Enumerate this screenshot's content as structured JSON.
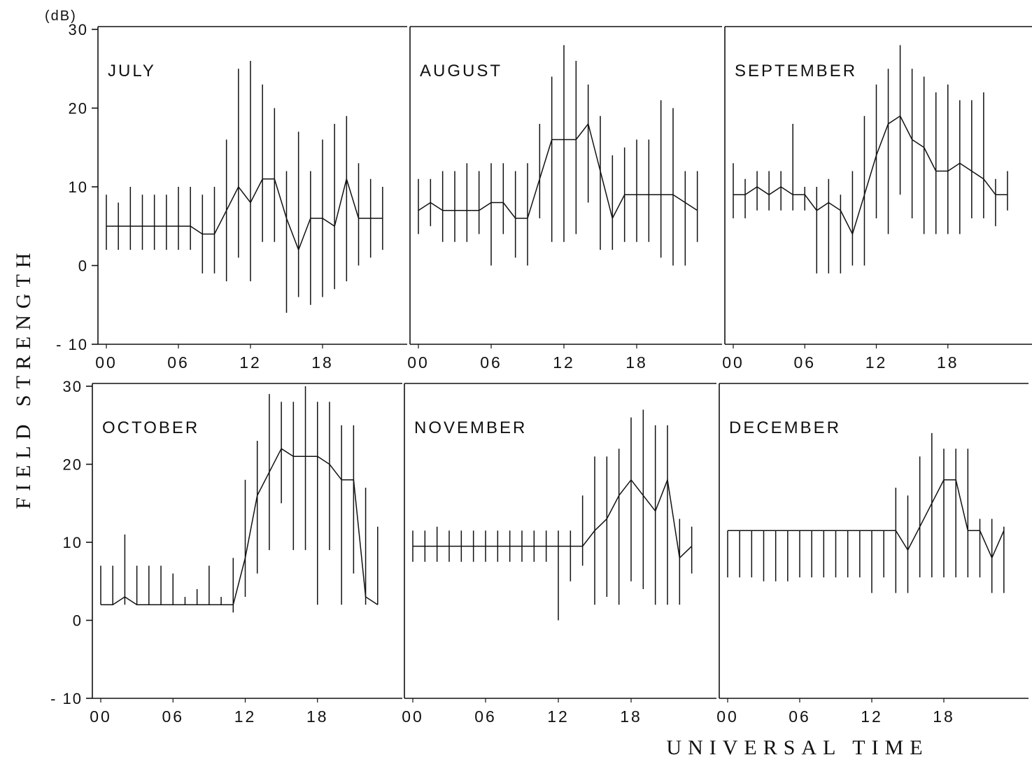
{
  "figure": {
    "ylabel": "FIELD STRENGTH",
    "xlabel": "UNIVERSAL TIME",
    "yunit": "(dB)"
  },
  "chart_data": [
    {
      "type": "line",
      "title": "JULY",
      "xlabel": "UNIVERSAL TIME",
      "ylabel": "FIELD STRENGTH",
      "yunit": "(dB)",
      "xlim": [
        0,
        24
      ],
      "ylim": [
        -10,
        30
      ],
      "xticks": [
        "00",
        "06",
        "12",
        "18"
      ],
      "yticks": [
        "30",
        "20",
        "10",
        "0",
        "-10"
      ],
      "x": [
        0,
        1,
        2,
        3,
        4,
        5,
        6,
        7,
        8,
        9,
        10,
        11,
        12,
        13,
        14,
        15,
        16,
        17,
        18,
        19,
        20,
        21,
        22,
        23
      ],
      "median": [
        5,
        5,
        5,
        5,
        5,
        5,
        5,
        5,
        4,
        4,
        7,
        10,
        8,
        11,
        11,
        6,
        2,
        6,
        6,
        5,
        11,
        6,
        6,
        6
      ],
      "upper": [
        9,
        8,
        10,
        9,
        9,
        9,
        10,
        10,
        9,
        10,
        16,
        25,
        26,
        23,
        20,
        12,
        17,
        12,
        16,
        18,
        19,
        13,
        11,
        10
      ],
      "lower": [
        2,
        2,
        2,
        2,
        2,
        2,
        2,
        2,
        -1,
        -1,
        -2,
        1,
        -2,
        3,
        3,
        -6,
        -4,
        -5,
        -4,
        -3,
        -2,
        0,
        1,
        2
      ]
    },
    {
      "type": "line",
      "title": "AUGUST",
      "xlabel": "UNIVERSAL TIME",
      "ylabel": "FIELD STRENGTH",
      "yunit": "(dB)",
      "xlim": [
        0,
        24
      ],
      "ylim": [
        -10,
        30
      ],
      "xticks": [
        "00",
        "06",
        "12",
        "18"
      ],
      "yticks": [
        "30",
        "20",
        "10",
        "0",
        "-10"
      ],
      "x": [
        0,
        1,
        2,
        3,
        4,
        5,
        6,
        7,
        8,
        9,
        10,
        11,
        12,
        13,
        14,
        15,
        16,
        17,
        18,
        19,
        20,
        21,
        22,
        23
      ],
      "median": [
        7,
        8,
        7,
        7,
        7,
        7,
        8,
        8,
        6,
        6,
        11,
        16,
        16,
        16,
        18,
        12,
        6,
        9,
        9,
        9,
        9,
        9,
        8,
        7
      ],
      "upper": [
        11,
        11,
        12,
        12,
        13,
        12,
        13,
        13,
        12,
        13,
        18,
        24,
        28,
        26,
        23,
        19,
        14,
        15,
        16,
        16,
        21,
        20,
        12,
        12
      ],
      "lower": [
        4,
        5,
        3,
        3,
        3,
        4,
        0,
        4,
        1,
        0,
        6,
        3,
        3,
        4,
        8,
        2,
        2,
        3,
        3,
        3,
        1,
        0,
        0,
        3
      ]
    },
    {
      "type": "line",
      "title": "SEPTEMBER",
      "xlabel": "UNIVERSAL TIME",
      "ylabel": "FIELD STRENGTH",
      "yunit": "(dB)",
      "xlim": [
        0,
        24
      ],
      "ylim": [
        -10,
        30
      ],
      "xticks": [
        "00",
        "06",
        "12",
        "18"
      ],
      "yticks": [
        "30",
        "20",
        "10",
        "0",
        "-10"
      ],
      "x": [
        0,
        1,
        2,
        3,
        4,
        5,
        6,
        7,
        8,
        9,
        10,
        11,
        12,
        13,
        14,
        15,
        16,
        17,
        18,
        19,
        20,
        21,
        22,
        23
      ],
      "median": [
        9,
        9,
        10,
        9,
        10,
        9,
        9,
        7,
        8,
        7,
        4,
        9,
        14,
        18,
        19,
        16,
        15,
        12,
        12,
        13,
        12,
        11,
        9,
        9
      ],
      "upper": [
        13,
        11,
        12,
        12,
        12,
        18,
        10,
        10,
        11,
        9,
        12,
        19,
        23,
        25,
        28,
        25,
        24,
        22,
        23,
        21,
        21,
        22,
        11,
        12
      ],
      "lower": [
        6,
        6,
        7,
        7,
        7,
        7,
        7,
        -1,
        -1,
        -1,
        0,
        0,
        6,
        4,
        9,
        6,
        4,
        4,
        4,
        4,
        6,
        6,
        5,
        7
      ]
    },
    {
      "type": "line",
      "title": "OCTOBER",
      "xlabel": "UNIVERSAL TIME",
      "ylabel": "FIELD STRENGTH",
      "yunit": "(dB)",
      "xlim": [
        0,
        24
      ],
      "ylim": [
        -10,
        30
      ],
      "xticks": [
        "00",
        "06",
        "12",
        "18"
      ],
      "yticks": [
        "30",
        "20",
        "10",
        "0",
        "-10"
      ],
      "x": [
        0,
        1,
        2,
        3,
        4,
        5,
        6,
        7,
        8,
        9,
        10,
        11,
        12,
        13,
        14,
        15,
        16,
        17,
        18,
        19,
        20,
        21,
        22,
        23
      ],
      "median": [
        2,
        2,
        3,
        2,
        2,
        2,
        2,
        2,
        2,
        2,
        2,
        2,
        8,
        16,
        19,
        22,
        21,
        21,
        21,
        20,
        18,
        18,
        3,
        2
      ],
      "upper": [
        7,
        7,
        11,
        7,
        7,
        7,
        6,
        3,
        4,
        7,
        3,
        8,
        18,
        23,
        29,
        28,
        28,
        30,
        28,
        28,
        25,
        25,
        17,
        12
      ],
      "lower": [
        2,
        2,
        2,
        2,
        2,
        2,
        2,
        2,
        2,
        2,
        2,
        1,
        3,
        6,
        9,
        15,
        9,
        9,
        2,
        9,
        2,
        6,
        2,
        2
      ]
    },
    {
      "type": "line",
      "title": "NOVEMBER",
      "xlabel": "UNIVERSAL TIME",
      "ylabel": "FIELD STRENGTH",
      "yunit": "(dB)",
      "xlim": [
        0,
        24
      ],
      "ylim": [
        -10,
        30
      ],
      "xticks": [
        "00",
        "06",
        "12",
        "18"
      ],
      "yticks": [
        "30",
        "20",
        "10",
        "0",
        "-10"
      ],
      "x": [
        0,
        1,
        2,
        3,
        4,
        5,
        6,
        7,
        8,
        9,
        10,
        11,
        12,
        13,
        14,
        15,
        16,
        17,
        18,
        19,
        20,
        21,
        22,
        23
      ],
      "median": [
        9.5,
        9.5,
        9.5,
        9.5,
        9.5,
        9.5,
        9.5,
        9.5,
        9.5,
        9.5,
        9.5,
        9.5,
        9.5,
        9.5,
        9.5,
        11.5,
        13,
        16,
        18,
        16,
        14,
        18,
        8,
        9.5
      ],
      "upper": [
        11.5,
        11.5,
        12,
        11.5,
        11.5,
        11.5,
        11.5,
        11.5,
        11.5,
        11.5,
        11.5,
        11.5,
        11.5,
        11.5,
        16,
        21,
        21,
        22,
        26,
        27,
        25,
        25,
        13,
        12
      ],
      "lower": [
        7.5,
        7.5,
        7.5,
        7.5,
        7.5,
        7.5,
        7.5,
        7.5,
        7.5,
        7.5,
        7.5,
        7.5,
        0,
        5,
        7,
        2,
        3,
        2,
        5,
        4,
        2,
        2,
        2,
        6
      ]
    },
    {
      "type": "line",
      "title": "DECEMBER",
      "xlabel": "UNIVERSAL TIME",
      "ylabel": "FIELD STRENGTH",
      "yunit": "(dB)",
      "xlim": [
        0,
        24
      ],
      "ylim": [
        -10,
        30
      ],
      "xticks": [
        "00",
        "06",
        "12",
        "18"
      ],
      "yticks": [
        "30",
        "20",
        "10",
        "0",
        "-10"
      ],
      "x": [
        0,
        1,
        2,
        3,
        4,
        5,
        6,
        7,
        8,
        9,
        10,
        11,
        12,
        13,
        14,
        15,
        16,
        17,
        18,
        19,
        20,
        21,
        22,
        23
      ],
      "median": [
        11.5,
        11.5,
        11.5,
        11.5,
        11.5,
        11.5,
        11.5,
        11.5,
        11.5,
        11.5,
        11.5,
        11.5,
        11.5,
        11.5,
        11.5,
        9,
        12,
        15,
        18,
        18,
        11.5,
        11.5,
        8,
        11.5
      ],
      "upper": [
        11.5,
        11.5,
        11.5,
        11.5,
        11.5,
        11.5,
        11.5,
        11.5,
        11.5,
        11.5,
        11.5,
        11.5,
        11.5,
        11.5,
        17,
        16,
        21,
        24,
        22,
        22,
        22,
        13,
        13,
        12
      ],
      "lower": [
        5.5,
        5.5,
        5.5,
        5,
        5,
        5,
        5.5,
        5.5,
        5.5,
        5.5,
        5.5,
        5.5,
        3.5,
        5.5,
        3.5,
        3.5,
        5.5,
        5.5,
        5.5,
        5.5,
        5.5,
        5.5,
        3.5,
        3.5
      ]
    }
  ]
}
